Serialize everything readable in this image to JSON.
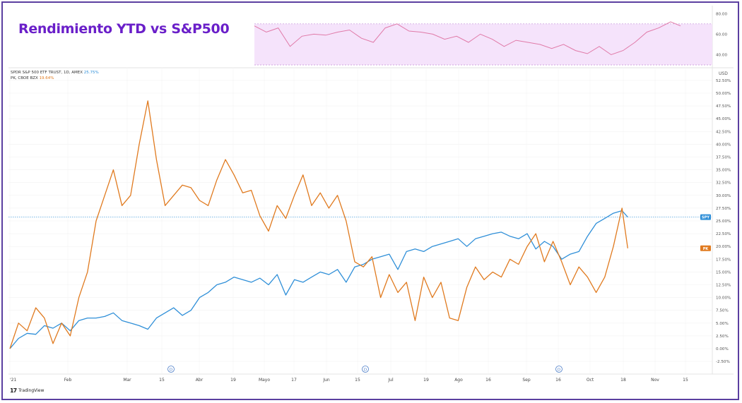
{
  "title": "Rendimiento YTD vs S&P500",
  "legend": {
    "spy_label": "SPDR S&P 500 ETF TRUST, 1D, AMEX",
    "spy_value": "25.75%",
    "pk_label": "PK, CBOE BZX",
    "pk_value": "19.64%"
  },
  "footer": {
    "brand": "TradingView",
    "logo_mark": "17"
  },
  "colors": {
    "spy": "#2f8fd8",
    "pk": "#e07a1f",
    "rsi": "#e07aa8",
    "rsi_band": "#f5e3fb"
  },
  "chart_data": [
    {
      "type": "line",
      "title": "",
      "ylabel": "USD",
      "ylim": [
        -2.5,
        52.5
      ],
      "yticks": [
        "52.50%",
        "50.00%",
        "47.50%",
        "45.00%",
        "42.50%",
        "40.00%",
        "37.50%",
        "35.00%",
        "32.50%",
        "30.00%",
        "27.50%",
        "25.00%",
        "22.50%",
        "20.00%",
        "17.50%",
        "15.00%",
        "12.50%",
        "10.00%",
        "7.50%",
        "5.00%",
        "2.50%",
        "0.00%",
        "-2.50%"
      ],
      "xticks": [
        "'21",
        "Feb",
        "Mar",
        "15",
        "Abr",
        "19",
        "Mayo",
        "17",
        "Jun",
        "15",
        "Jul",
        "19",
        "Ago",
        "16",
        "Sep",
        "16",
        "Oct",
        "18",
        "Nov",
        "15"
      ],
      "dividend_markers": [
        "D",
        "D",
        "D"
      ],
      "reference_line": 25.75,
      "series": [
        {
          "name": "SPY",
          "last_label": "SPY",
          "x": [
            0,
            3,
            6,
            9,
            12,
            15,
            18,
            21,
            24,
            27,
            30,
            33,
            36,
            39,
            42,
            45,
            48,
            51,
            54,
            57,
            60,
            63,
            66,
            69,
            72,
            75,
            78,
            81,
            84,
            87,
            90,
            93,
            96,
            99,
            102,
            105,
            108,
            111,
            114,
            117,
            120,
            123,
            126,
            129,
            132,
            135,
            138,
            141,
            144,
            147,
            150,
            153,
            156,
            159,
            162,
            165,
            168,
            171,
            174,
            177,
            180,
            183,
            186,
            189,
            192,
            195,
            198,
            201,
            204,
            207,
            210,
            213,
            215
          ],
          "values": [
            0.0,
            2.0,
            3.0,
            2.8,
            4.5,
            4.0,
            5.0,
            3.5,
            5.5,
            6.0,
            6.0,
            6.3,
            7.0,
            5.5,
            5.0,
            4.5,
            3.8,
            6.0,
            7.0,
            8.0,
            6.5,
            7.5,
            10.0,
            11.0,
            12.5,
            13.0,
            14.0,
            13.5,
            13.0,
            13.8,
            12.5,
            14.5,
            10.5,
            13.5,
            13.0,
            14.0,
            15.0,
            14.5,
            15.5,
            13.0,
            16.0,
            16.5,
            17.5,
            18.0,
            18.5,
            15.5,
            19.0,
            19.5,
            19.0,
            20.0,
            20.5,
            21.0,
            21.5,
            20.0,
            21.5,
            22.0,
            22.5,
            22.8,
            22.0,
            21.5,
            22.5,
            19.5,
            21.0,
            20.0,
            17.5,
            18.5,
            19.0,
            22.0,
            24.5,
            25.5,
            26.5,
            27.0,
            25.75
          ]
        },
        {
          "name": "PK",
          "last_label": "PK",
          "x": [
            0,
            3,
            6,
            9,
            12,
            15,
            18,
            21,
            24,
            27,
            30,
            33,
            36,
            39,
            42,
            45,
            48,
            51,
            54,
            57,
            60,
            63,
            66,
            69,
            72,
            75,
            78,
            81,
            84,
            87,
            90,
            93,
            96,
            99,
            102,
            105,
            108,
            111,
            114,
            117,
            120,
            123,
            126,
            129,
            132,
            135,
            138,
            141,
            144,
            147,
            150,
            153,
            156,
            159,
            162,
            165,
            168,
            171,
            174,
            177,
            180,
            183,
            186,
            189,
            192,
            195,
            198,
            201,
            204,
            207,
            210,
            213,
            215
          ],
          "values": [
            0.0,
            5.0,
            3.5,
            8.0,
            6.0,
            1.0,
            5.0,
            2.5,
            10.0,
            15.0,
            25.0,
            30.0,
            35.0,
            28.0,
            30.0,
            40.0,
            48.5,
            37.0,
            28.0,
            30.0,
            32.0,
            31.5,
            29.0,
            28.0,
            33.0,
            37.0,
            34.0,
            30.5,
            31.0,
            26.0,
            23.0,
            28.0,
            25.5,
            30.0,
            34.0,
            28.0,
            30.5,
            27.5,
            30.0,
            25.0,
            17.0,
            16.0,
            18.0,
            10.0,
            14.5,
            11.0,
            13.0,
            5.5,
            14.0,
            10.0,
            13.0,
            6.0,
            5.5,
            12.0,
            16.0,
            13.5,
            15.0,
            14.0,
            17.5,
            16.5,
            20.0,
            22.5,
            17.0,
            21.0,
            17.0,
            12.5,
            16.0,
            14.0,
            11.0,
            14.0,
            20.0,
            27.5,
            19.64
          ]
        }
      ]
    },
    {
      "type": "line",
      "title": "",
      "ylim": [
        30,
        85
      ],
      "yticks": [
        "80.00",
        "60.00",
        "40.00"
      ],
      "band": [
        30,
        70
      ],
      "series": [
        {
          "x": [
            0,
            6,
            12,
            18,
            24,
            30,
            36,
            42,
            48,
            54,
            60,
            66,
            72,
            78,
            84,
            90,
            96,
            102,
            108,
            114,
            120,
            126,
            132,
            138,
            144,
            150,
            156,
            162,
            168,
            174,
            180,
            186,
            192,
            198,
            204,
            210,
            215
          ],
          "values": [
            68,
            62,
            66,
            48,
            58,
            60,
            59,
            62,
            64,
            56,
            52,
            66,
            70,
            63,
            62,
            60,
            55,
            58,
            52,
            60,
            55,
            48,
            54,
            52,
            50,
            46,
            50,
            44,
            41,
            48,
            40,
            44,
            52,
            62,
            66,
            72,
            68
          ]
        }
      ]
    }
  ]
}
